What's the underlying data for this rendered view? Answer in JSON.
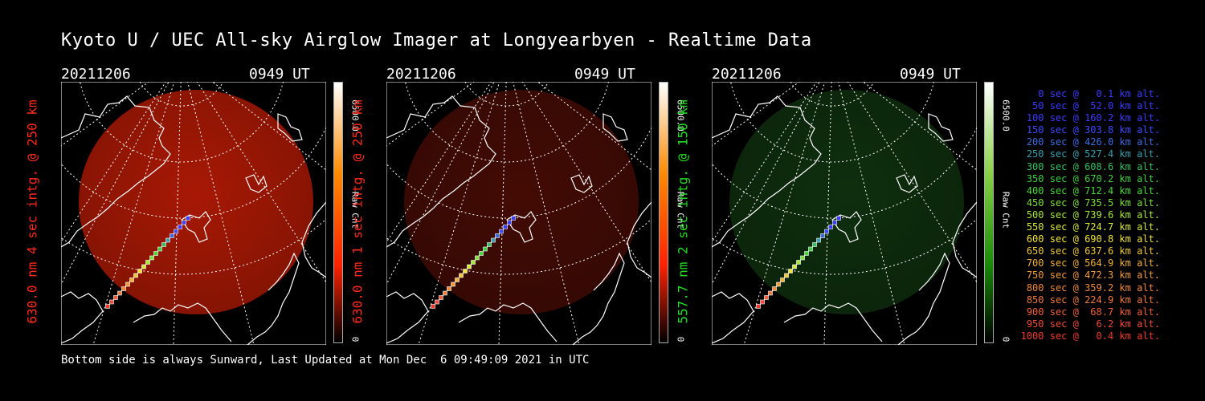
{
  "title": "Kyoto U / UEC All-sky Airglow Imager at Longyearbyen - Realtime Data",
  "footer": "Bottom side is always Sunward, Last Updated at Mon Dec  6 09:49:09 2021 in UTC",
  "panels": [
    {
      "date": "20211206",
      "time": "0949 UT",
      "side_label": "630.0 nm 4 sec intg. @ 250 km",
      "side_color": "#ff2a1a",
      "cbar_max": "6500.0",
      "cbar_unit": "Raw Cnt",
      "cbar_min": "0",
      "glow_color": "#b01a05",
      "glow_intensity": 0.95,
      "cbar_colors": [
        "#ffffff",
        "#ff8a00",
        "#ff2200",
        "#000000"
      ]
    },
    {
      "date": "20211206",
      "time": "0949 UT",
      "side_label": "630.0 nm 1 sec intg. @ 250 km",
      "side_color": "#ff2a1a",
      "cbar_max": "6500.0",
      "cbar_unit": "Raw Cnt",
      "cbar_min": "0",
      "glow_color": "#5a0f06",
      "glow_intensity": 0.75,
      "cbar_colors": [
        "#ffffff",
        "#ff8a00",
        "#ff2200",
        "#000000"
      ]
    },
    {
      "date": "20211206",
      "time": "0949 UT",
      "side_label": "557.7 nm 2 sec intg. @ 150 km",
      "side_color": "#22dd22",
      "cbar_max": "6500.0",
      "cbar_unit": "Raw Cnt",
      "cbar_min": "0",
      "glow_color": "#123a12",
      "glow_intensity": 0.8,
      "cbar_colors": [
        "#ffffff",
        "#88d048",
        "#1a8a0a",
        "#000000"
      ]
    }
  ],
  "legend": [
    {
      "text": "0 sec @   0.1 km alt.",
      "color": "#3b3bff"
    },
    {
      "text": "50 sec @  52.0 km alt.",
      "color": "#3b3bff"
    },
    {
      "text": "100 sec @ 160.2 km alt.",
      "color": "#3b3bff"
    },
    {
      "text": "150 sec @ 303.8 km alt.",
      "color": "#3b4bff"
    },
    {
      "text": "200 sec @ 426.0 km alt.",
      "color": "#3b6be0"
    },
    {
      "text": "250 sec @ 527.4 km alt.",
      "color": "#3aa0b0"
    },
    {
      "text": "300 sec @ 608.6 km alt.",
      "color": "#3ac060"
    },
    {
      "text": "350 sec @ 670.2 km alt.",
      "color": "#3ed040"
    },
    {
      "text": "400 sec @ 712.4 km alt.",
      "color": "#4ad83a"
    },
    {
      "text": "450 sec @ 735.5 km alt.",
      "color": "#7ae03a"
    },
    {
      "text": "500 sec @ 739.6 km alt.",
      "color": "#a8e83a"
    },
    {
      "text": "550 sec @ 724.7 km alt.",
      "color": "#d8e83a"
    },
    {
      "text": "600 sec @ 690.8 km alt.",
      "color": "#f0e23a"
    },
    {
      "text": "650 sec @ 637.6 km alt.",
      "color": "#f0c83a"
    },
    {
      "text": "700 sec @ 564.9 km alt.",
      "color": "#f0b03a"
    },
    {
      "text": "750 sec @ 472.3 km alt.",
      "color": "#f09a3a"
    },
    {
      "text": "800 sec @ 359.2 km alt.",
      "color": "#f08a3a"
    },
    {
      "text": "850 sec @ 224.9 km alt.",
      "color": "#f07a3a"
    },
    {
      "text": "900 sec @  68.7 km alt.",
      "color": "#f0603a"
    },
    {
      "text": "950 sec @   6.2 km alt.",
      "color": "#f04a3a"
    },
    {
      "text": "1000 sec @   0.4 km alt.",
      "color": "#f03a2a"
    }
  ]
}
